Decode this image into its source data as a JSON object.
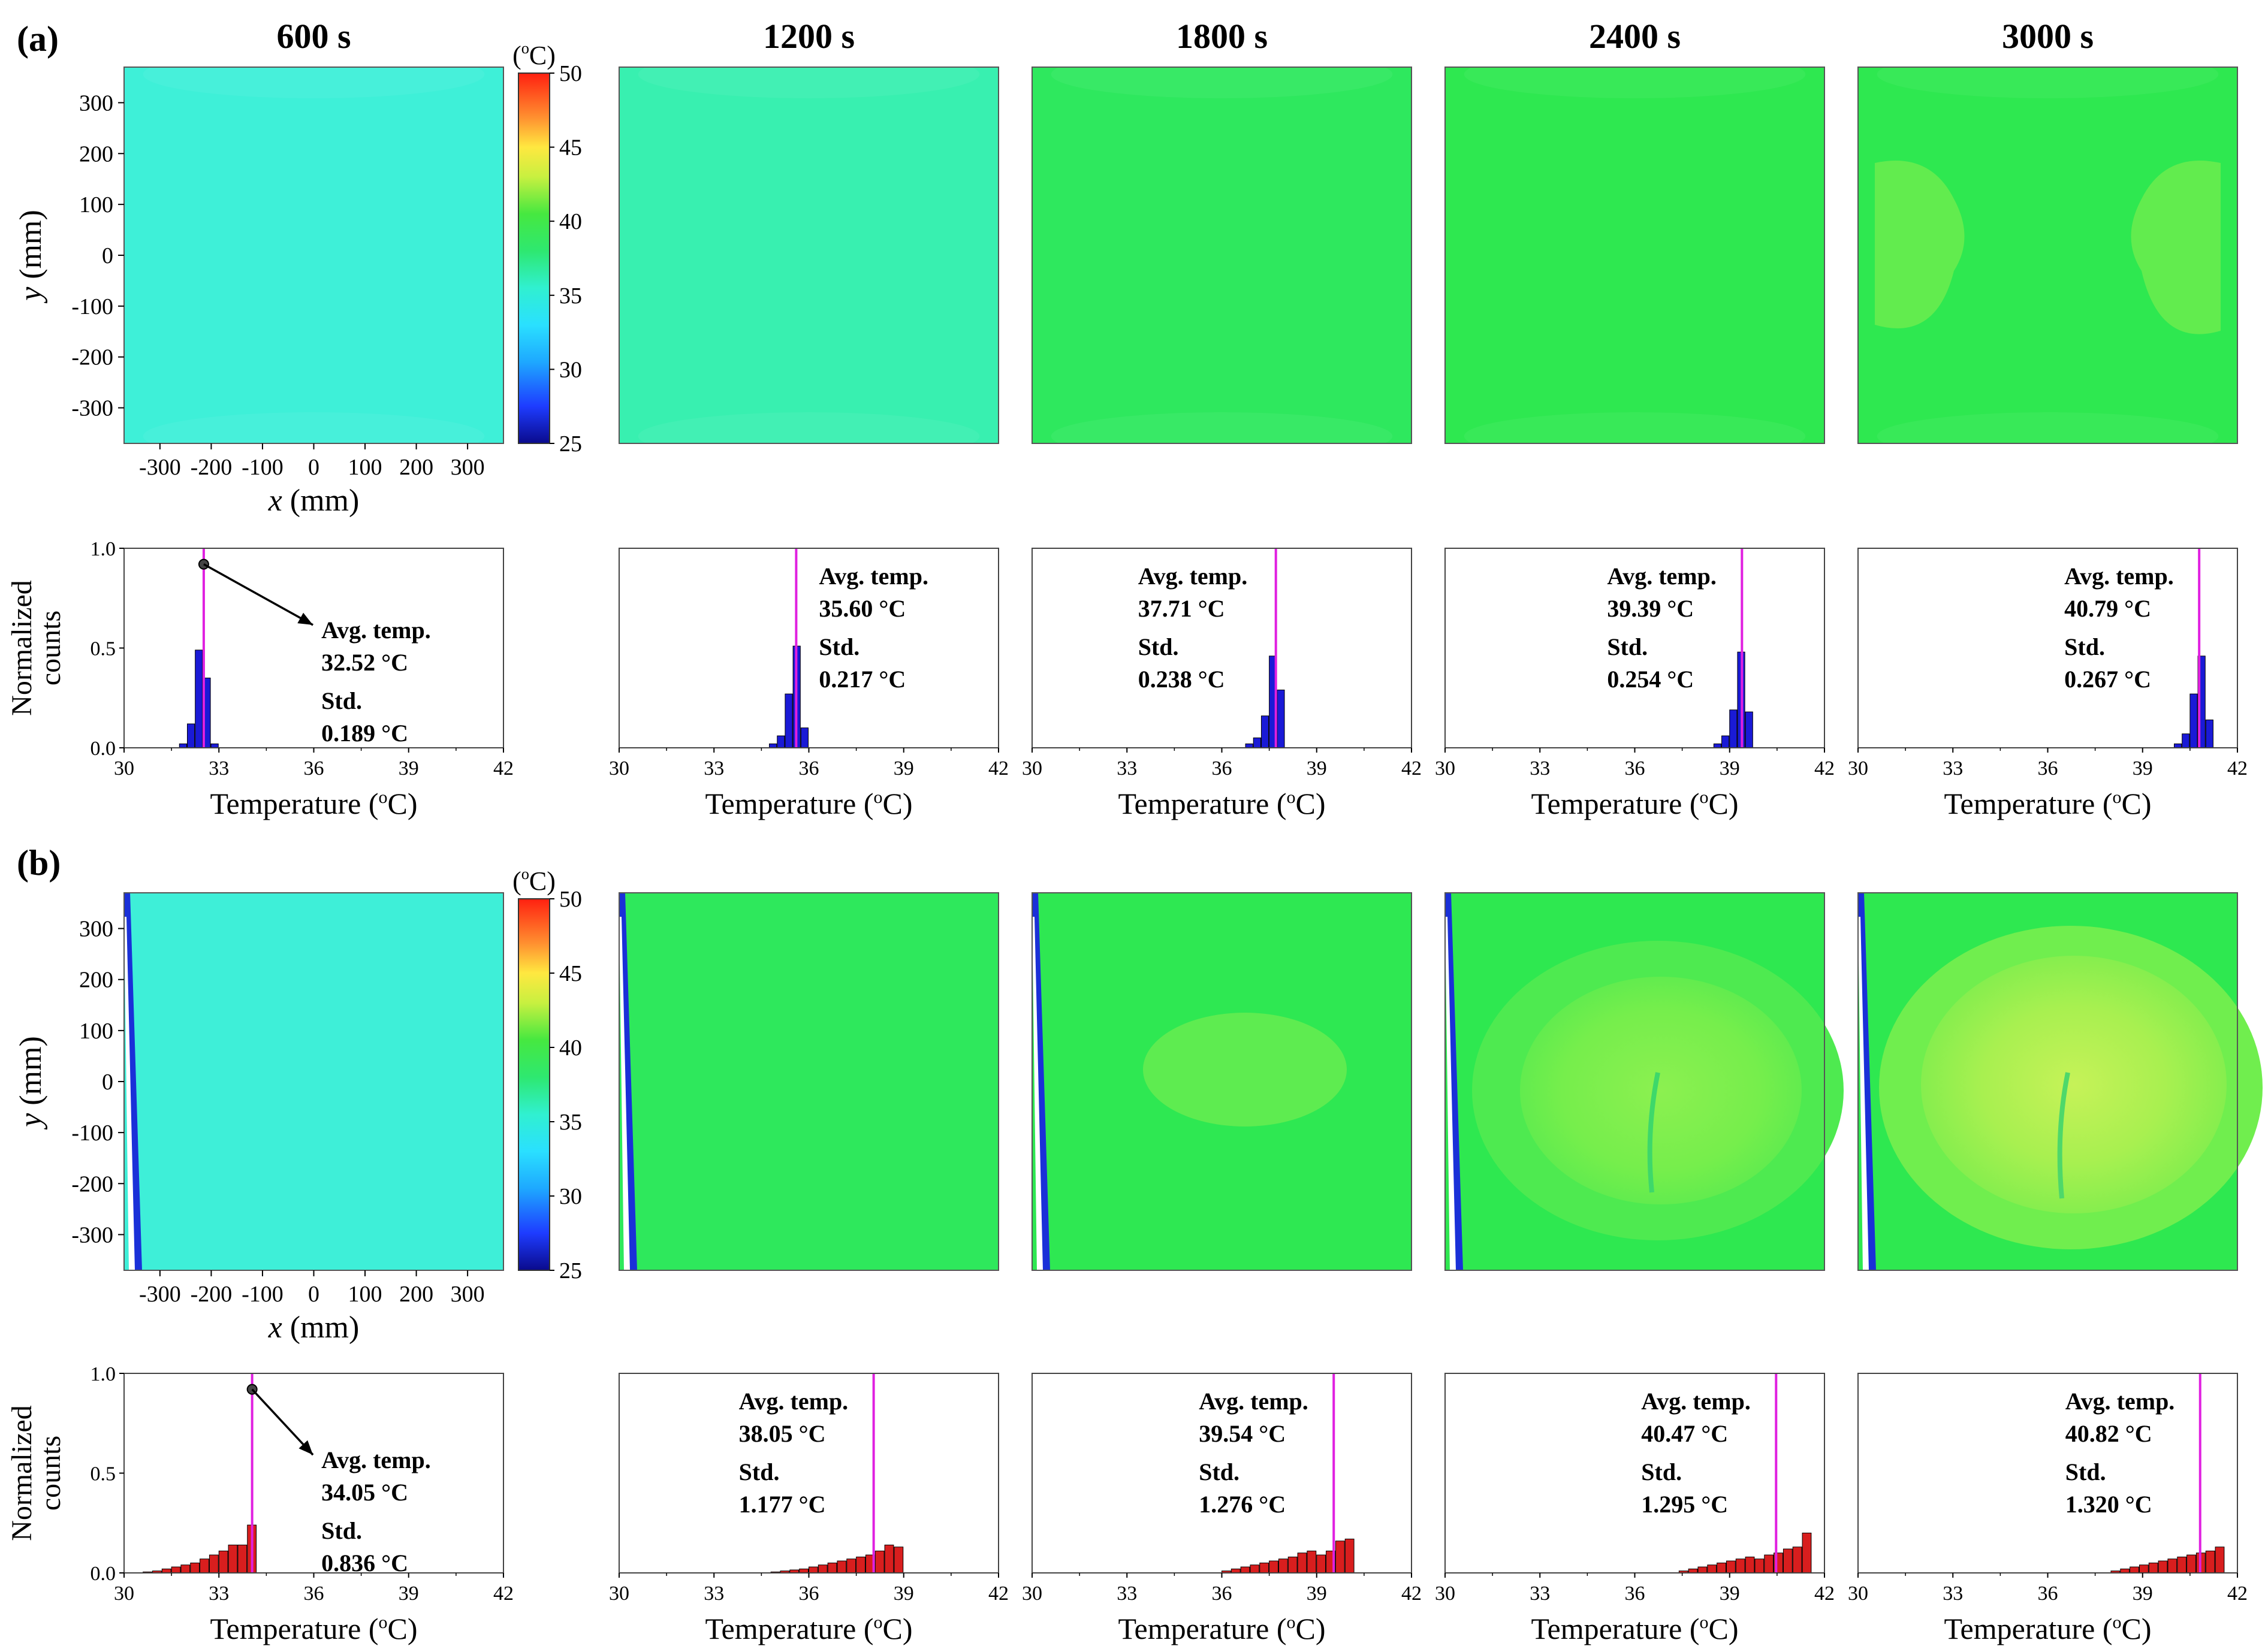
{
  "colors": {
    "bar_a": "#1a1ad6",
    "bar_b": "#d81e1e",
    "avg_line": "#e020e0",
    "map_a": [
      "#3ef0d8",
      "#38f0b0",
      "#2ee85e",
      "#2ee850",
      "#2ee850"
    ],
    "map_b": [
      "#3eefd8",
      "#2ee85c",
      "#2ee852",
      "#2ee850",
      "#2ee850"
    ]
  },
  "chart_data": [
    {
      "type": "heatmap",
      "panel": "(a)",
      "times": [
        "600 s",
        "1200 s",
        "1800 s",
        "2400 s",
        "3000 s"
      ],
      "xlabel_var": "x",
      "xlabel_unit": " (mm)",
      "ylabel_var": "y",
      "ylabel_unit": " (mm)",
      "x_ticks": [
        "-300",
        "-200",
        "-100",
        "0",
        "100",
        "200",
        "300"
      ],
      "y_ticks": [
        "300",
        "200",
        "100",
        "0",
        "-100",
        "-200",
        "-300"
      ],
      "xlim": [
        -370,
        370
      ],
      "ylim": [
        -370,
        370
      ],
      "colorbar": {
        "unit": "(oC)",
        "ticks": [
          "50",
          "45",
          "40",
          "35",
          "30",
          "25"
        ],
        "range": [
          25,
          50
        ]
      }
    },
    {
      "type": "bar",
      "panel": "(a)",
      "ylabel": [
        "Normalized",
        "counts"
      ],
      "xlabel": "Temperature (oC)",
      "x_ticks": [
        "30",
        "33",
        "36",
        "39",
        "42"
      ],
      "y_ticks": [
        "1.0",
        "0.5",
        "0.0"
      ],
      "xlim": [
        30,
        42
      ],
      "ylim": [
        0,
        1
      ],
      "bin_width": 0.25,
      "series": [
        {
          "time": "600 s",
          "avg_label": "Avg. temp.",
          "avg_value": "32.52 °C",
          "std_label": "Std.",
          "std_value": "0.189 °C",
          "avg": 32.52,
          "bin_start": 31.75,
          "values": [
            0.02,
            0.12,
            0.49,
            0.35,
            0.02
          ]
        },
        {
          "time": "1200 s",
          "avg_label": "Avg. temp.",
          "avg_value": "35.60 °C",
          "std_label": "Std.",
          "std_value": "0.217 °C",
          "avg": 35.6,
          "bin_start": 34.75,
          "values": [
            0.02,
            0.06,
            0.27,
            0.51,
            0.1
          ]
        },
        {
          "time": "1800 s",
          "avg_label": "Avg. temp.",
          "avg_value": "37.71 °C",
          "std_label": "Std.",
          "std_value": "0.238 °C",
          "avg": 37.71,
          "bin_start": 36.75,
          "values": [
            0.02,
            0.05,
            0.16,
            0.46,
            0.29
          ]
        },
        {
          "time": "2400 s",
          "avg_label": "Avg. temp.",
          "avg_value": "39.39 °C",
          "std_label": "Std.",
          "std_value": "0.254 °C",
          "avg": 39.39,
          "bin_start": 38.5,
          "values": [
            0.02,
            0.06,
            0.19,
            0.48,
            0.18
          ]
        },
        {
          "time": "3000 s",
          "avg_label": "Avg. temp.",
          "avg_value": "40.79 °C",
          "std_label": "Std.",
          "std_value": "0.267 °C",
          "avg": 40.79,
          "bin_start": 40.0,
          "values": [
            0.02,
            0.07,
            0.27,
            0.46,
            0.14
          ]
        }
      ]
    },
    {
      "type": "heatmap",
      "panel": "(b)",
      "times": [
        "600 s",
        "1200 s",
        "1800 s",
        "2400 s",
        "3000 s"
      ],
      "xlabel_var": "x",
      "xlabel_unit": " (mm)",
      "ylabel_var": "y",
      "ylabel_unit": " (mm)",
      "x_ticks": [
        "-300",
        "-200",
        "-100",
        "0",
        "100",
        "200",
        "300"
      ],
      "y_ticks": [
        "300",
        "200",
        "100",
        "0",
        "-100",
        "-200",
        "-300"
      ],
      "xlim": [
        -370,
        370
      ],
      "ylim": [
        -370,
        370
      ],
      "colorbar": {
        "unit": "(oC)",
        "ticks": [
          "50",
          "45",
          "40",
          "35",
          "30",
          "25"
        ],
        "range": [
          25,
          50
        ]
      }
    },
    {
      "type": "bar",
      "panel": "(b)",
      "ylabel": [
        "Normalized",
        "counts"
      ],
      "xlabel": "Temperature (oC)",
      "x_ticks": [
        "30",
        "33",
        "36",
        "39",
        "42"
      ],
      "y_ticks": [
        "1.0",
        "0.5",
        "0.0"
      ],
      "xlim": [
        30,
        42
      ],
      "ylim": [
        0,
        1
      ],
      "bin_width": 0.3,
      "series": [
        {
          "time": "600 s",
          "avg_label": "Avg. temp.",
          "avg_value": "34.05 °C",
          "std_label": "Std.",
          "std_value": "0.836 °C",
          "avg": 34.05,
          "bin_start": 30.6,
          "values": [
            0.005,
            0.01,
            0.02,
            0.03,
            0.04,
            0.05,
            0.07,
            0.09,
            0.11,
            0.14,
            0.14,
            0.24
          ]
        },
        {
          "time": "1200 s",
          "avg_label": "Avg. temp.",
          "avg_value": "38.05 °C",
          "std_label": "Std.",
          "std_value": "1.177 °C",
          "avg": 38.05,
          "bin_start": 34.8,
          "values": [
            0.005,
            0.01,
            0.015,
            0.02,
            0.03,
            0.04,
            0.05,
            0.06,
            0.07,
            0.08,
            0.09,
            0.11,
            0.14,
            0.13
          ]
        },
        {
          "time": "1800 s",
          "avg_label": "Avg. temp.",
          "avg_value": "39.54 °C",
          "std_label": "Std.",
          "std_value": "1.276 °C",
          "avg": 39.54,
          "bin_start": 36.0,
          "values": [
            0.01,
            0.02,
            0.03,
            0.04,
            0.05,
            0.06,
            0.07,
            0.08,
            0.1,
            0.11,
            0.09,
            0.11,
            0.16,
            0.17
          ]
        },
        {
          "time": "2400 s",
          "avg_label": "Avg. temp.",
          "avg_value": "40.47 °C",
          "std_label": "Std.",
          "std_value": "1.295 °C",
          "avg": 40.47,
          "bin_start": 37.4,
          "values": [
            0.01,
            0.02,
            0.03,
            0.04,
            0.05,
            0.06,
            0.07,
            0.08,
            0.07,
            0.09,
            0.1,
            0.12,
            0.13,
            0.2
          ]
        },
        {
          "time": "3000 s",
          "avg_label": "Avg. temp.",
          "avg_value": "40.82 °C",
          "std_label": "Std.",
          "std_value": "1.320 °C",
          "avg": 40.82,
          "bin_start": 38.0,
          "values": [
            0.01,
            0.02,
            0.03,
            0.04,
            0.05,
            0.06,
            0.07,
            0.08,
            0.09,
            0.1,
            0.11,
            0.13
          ]
        }
      ]
    }
  ],
  "panel_labels": [
    "(a)",
    "(b)"
  ]
}
